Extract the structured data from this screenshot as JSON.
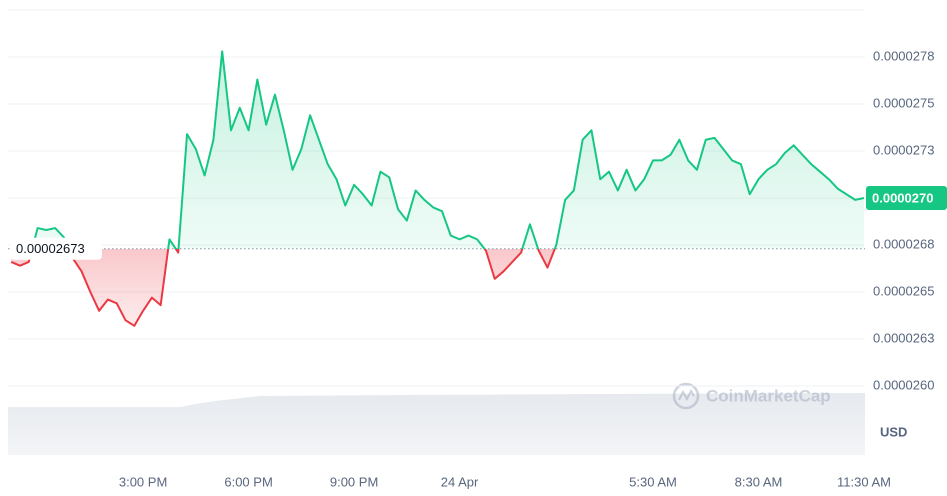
{
  "chart_data": {
    "type": "line",
    "categories": [
      null,
      null,
      null,
      null,
      null,
      null,
      null,
      null,
      null,
      null,
      null,
      null,
      null,
      null,
      null,
      "3:00 PM",
      null,
      null,
      null,
      null,
      null,
      null,
      null,
      null,
      null,
      null,
      null,
      "6:00 PM",
      null,
      null,
      null,
      null,
      null,
      null,
      null,
      null,
      null,
      null,
      null,
      "9:00 PM",
      null,
      null,
      null,
      null,
      null,
      null,
      null,
      null,
      null,
      null,
      null,
      "24 Apr",
      null,
      null,
      null,
      null,
      null,
      null,
      null,
      null,
      null,
      null,
      null,
      null,
      null,
      null,
      null,
      null,
      null,
      null,
      null,
      null,
      null,
      "5:30 AM",
      null,
      null,
      null,
      null,
      null,
      null,
      null,
      null,
      null,
      null,
      null,
      "8:30 AM",
      null,
      null,
      null,
      null,
      null,
      null,
      null,
      null,
      null,
      null,
      null,
      "11:30 AM"
    ],
    "values": [
      2.666e-05,
      2.664e-05,
      2.666e-05,
      2.684e-05,
      2.683e-05,
      2.684e-05,
      2.679e-05,
      2.668e-05,
      2.661e-05,
      2.65e-05,
      2.64e-05,
      2.646e-05,
      2.644e-05,
      2.635e-05,
      2.632e-05,
      2.64e-05,
      2.647e-05,
      2.643e-05,
      2.678e-05,
      2.671e-05,
      2.734e-05,
      2.726e-05,
      2.712e-05,
      2.731e-05,
      2.778e-05,
      2.736e-05,
      2.748e-05,
      2.736e-05,
      2.763e-05,
      2.739e-05,
      2.755e-05,
      2.736e-05,
      2.715e-05,
      2.726e-05,
      2.744e-05,
      2.731e-05,
      2.718e-05,
      2.71e-05,
      2.696e-05,
      2.707e-05,
      2.702e-05,
      2.696e-05,
      2.714e-05,
      2.711e-05,
      2.694e-05,
      2.688e-05,
      2.704e-05,
      2.699e-05,
      2.695e-05,
      2.693e-05,
      2.68e-05,
      2.678e-05,
      2.68e-05,
      2.678e-05,
      2.672e-05,
      2.657e-05,
      2.661e-05,
      2.666e-05,
      2.671e-05,
      2.686e-05,
      2.672e-05,
      2.663e-05,
      2.675e-05,
      2.699e-05,
      2.704e-05,
      2.731e-05,
      2.736e-05,
      2.71e-05,
      2.714e-05,
      2.704e-05,
      2.715e-05,
      2.704e-05,
      2.71e-05,
      2.72e-05,
      2.72e-05,
      2.723e-05,
      2.731e-05,
      2.72e-05,
      2.715e-05,
      2.731e-05,
      2.732e-05,
      2.726e-05,
      2.72e-05,
      2.718e-05,
      2.702e-05,
      2.71e-05,
      2.715e-05,
      2.718e-05,
      2.724e-05,
      2.728e-05,
      2.723e-05,
      2.718e-05,
      2.714e-05,
      2.71e-05,
      2.705e-05,
      2.702e-05,
      2.699e-05,
      2.7e-05
    ],
    "last_value_label": "0.0000270",
    "baseline": {
      "value": 2.673e-05,
      "label": "0.00002673"
    },
    "color_up": "#16c784",
    "color_down": "#ea3943",
    "ylim": [
      2.56e-05,
      2.8e-05
    ],
    "yticks": [
      {
        "value": 2.6e-05,
        "label": "0.0000260"
      },
      {
        "value": 2.625e-05,
        "label": "0.0000263"
      },
      {
        "value": 2.65e-05,
        "label": "0.0000265"
      },
      {
        "value": 2.675e-05,
        "label": "0.0000268"
      },
      {
        "value": 2.7e-05,
        "label": "0.0000270"
      },
      {
        "value": 2.725e-05,
        "label": "0.0000273"
      },
      {
        "value": 2.75e-05,
        "label": "0.0000275"
      },
      {
        "value": 2.775e-05,
        "label": "0.0000278"
      }
    ],
    "grid": true,
    "currency_label": "USD",
    "watermark": "CoinMarketCap"
  }
}
